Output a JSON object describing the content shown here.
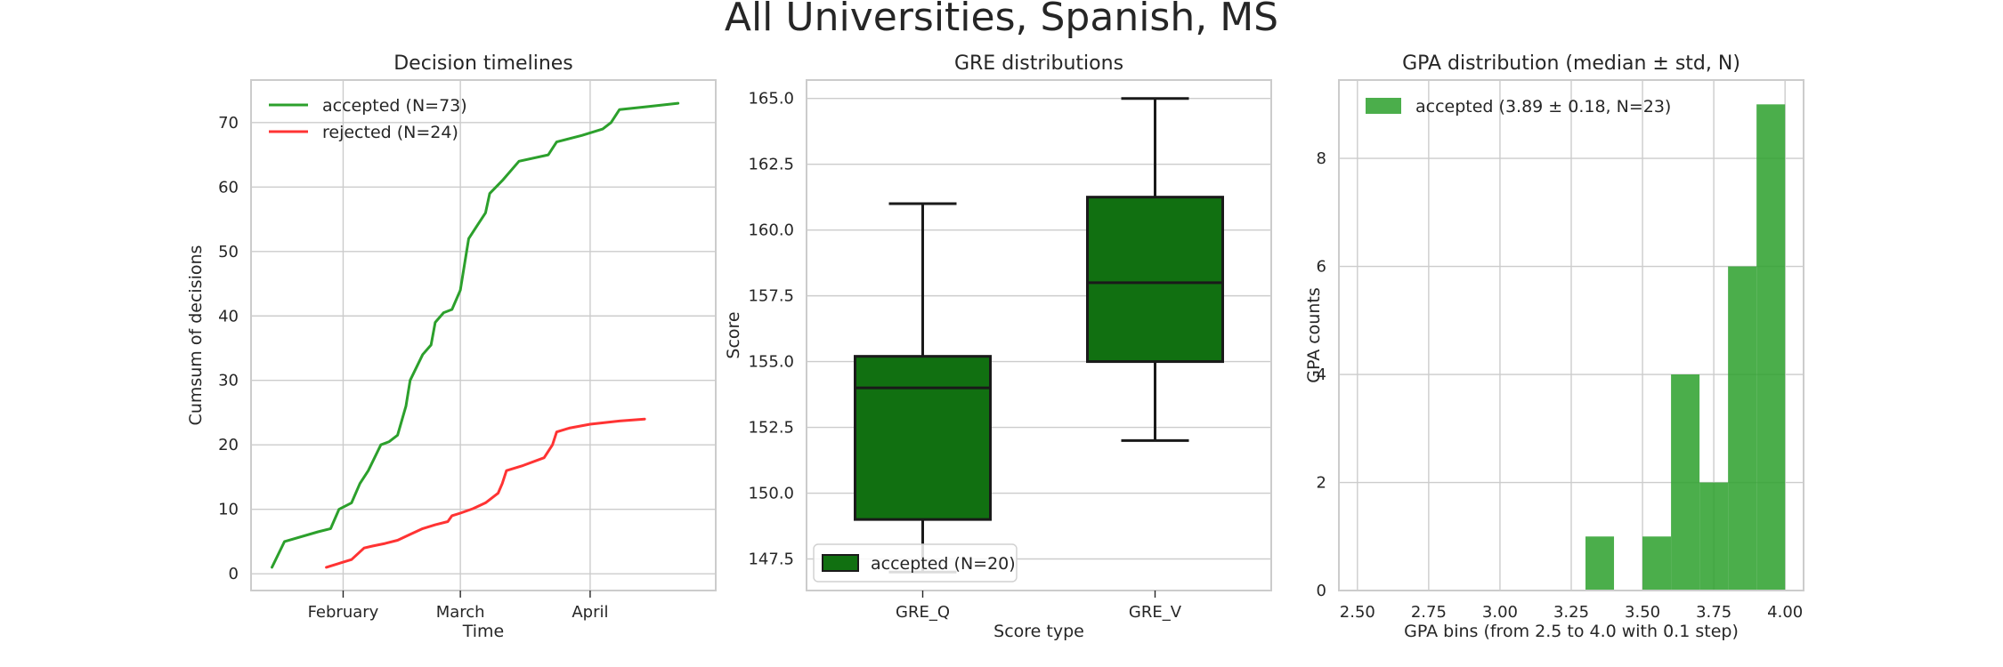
{
  "suptitle": "All Universities, Spanish, MS",
  "chart_data": [
    {
      "type": "line",
      "title": "Decision timelines",
      "xlabel": "Time",
      "ylabel": "Cumsum of decisions",
      "xlim": [
        "2019-01-10",
        "2019-05-01"
      ],
      "ylim": [
        -2.6,
        76.6
      ],
      "yticks": [
        0,
        10,
        20,
        30,
        40,
        50,
        60,
        70
      ],
      "xticks": [
        {
          "date": "2019-02-01",
          "label": "February"
        },
        {
          "date": "2019-03-01",
          "label": "March"
        },
        {
          "date": "2019-04-01",
          "label": "April"
        }
      ],
      "grid": true,
      "legend": "top-left",
      "series": [
        {
          "name": "accepted (N=73)",
          "color": "#2ca02c",
          "points": [
            [
              "2019-01-15",
              1
            ],
            [
              "2019-01-18",
              5
            ],
            [
              "2019-01-26",
              6.5
            ],
            [
              "2019-01-29",
              7
            ],
            [
              "2019-01-31",
              10
            ],
            [
              "2019-02-03",
              11
            ],
            [
              "2019-02-05",
              14
            ],
            [
              "2019-02-07",
              16
            ],
            [
              "2019-02-10",
              20
            ],
            [
              "2019-02-12",
              20.5
            ],
            [
              "2019-02-14",
              21.5
            ],
            [
              "2019-02-16",
              26
            ],
            [
              "2019-02-17",
              30
            ],
            [
              "2019-02-20",
              34
            ],
            [
              "2019-02-22",
              35.5
            ],
            [
              "2019-02-23",
              39
            ],
            [
              "2019-02-25",
              40.5
            ],
            [
              "2019-02-27",
              41
            ],
            [
              "2019-03-01",
              44
            ],
            [
              "2019-03-02",
              48
            ],
            [
              "2019-03-03",
              52
            ],
            [
              "2019-03-05",
              54
            ],
            [
              "2019-03-07",
              56
            ],
            [
              "2019-03-08",
              59
            ],
            [
              "2019-03-11",
              61
            ],
            [
              "2019-03-15",
              64
            ],
            [
              "2019-03-22",
              65
            ],
            [
              "2019-03-24",
              67
            ],
            [
              "2019-03-30",
              68
            ],
            [
              "2019-04-04",
              69
            ],
            [
              "2019-04-06",
              70
            ],
            [
              "2019-04-08",
              72
            ],
            [
              "2019-04-15",
              72.5
            ],
            [
              "2019-04-22",
              73
            ]
          ]
        },
        {
          "name": "rejected (N=24)",
          "color": "#ff3333",
          "points": [
            [
              "2019-01-28",
              1
            ],
            [
              "2019-02-01",
              1.8
            ],
            [
              "2019-02-03",
              2.2
            ],
            [
              "2019-02-06",
              4
            ],
            [
              "2019-02-08",
              4.3
            ],
            [
              "2019-02-11",
              4.7
            ],
            [
              "2019-02-14",
              5.2
            ],
            [
              "2019-02-17",
              6.1
            ],
            [
              "2019-02-20",
              7.0
            ],
            [
              "2019-02-23",
              7.6
            ],
            [
              "2019-02-26",
              8.1
            ],
            [
              "2019-02-27",
              9
            ],
            [
              "2019-03-01",
              9.4
            ],
            [
              "2019-03-04",
              10.1
            ],
            [
              "2019-03-07",
              11.0
            ],
            [
              "2019-03-10",
              12.5
            ],
            [
              "2019-03-11",
              14
            ],
            [
              "2019-03-12",
              16
            ],
            [
              "2019-03-16",
              16.8
            ],
            [
              "2019-03-21",
              18
            ],
            [
              "2019-03-23",
              20
            ],
            [
              "2019-03-24",
              22
            ],
            [
              "2019-03-27",
              22.6
            ],
            [
              "2019-04-01",
              23.2
            ],
            [
              "2019-04-08",
              23.7
            ],
            [
              "2019-04-14",
              24
            ]
          ]
        }
      ]
    },
    {
      "type": "box",
      "title": "GRE distributions",
      "xlabel": "Score type",
      "ylabel": "Score",
      "ylim": [
        146.3,
        165.7
      ],
      "yticks": [
        147.5,
        150.0,
        152.5,
        155.0,
        157.5,
        160.0,
        162.5,
        165.0
      ],
      "categories": [
        "GRE_Q",
        "GRE_V"
      ],
      "grid": true,
      "legend": "bottom-left",
      "series": [
        {
          "name": "accepted (N=20)",
          "color": "#117011",
          "boxes": [
            {
              "category": "GRE_Q",
              "whisker_low": 147.0,
              "q1": 149.0,
              "median": 154.0,
              "q3": 155.2,
              "whisker_high": 161.0
            },
            {
              "category": "GRE_V",
              "whisker_low": 152.0,
              "q1": 155.0,
              "median": 158.0,
              "q3": 161.25,
              "whisker_high": 165.0
            }
          ]
        }
      ]
    },
    {
      "type": "bar",
      "title": "GPA distribution (median ± std, N)",
      "xlabel": "GPA bins (from 2.5 to 4.0 with 0.1 step)",
      "ylabel": "GPA counts",
      "xlim": [
        2.435,
        4.065
      ],
      "ylim": [
        0,
        9.45
      ],
      "xticks": [
        2.5,
        2.75,
        3.0,
        3.25,
        3.5,
        3.75,
        4.0
      ],
      "xtick_labels": [
        "2.50",
        "2.75",
        "3.00",
        "3.25",
        "3.50",
        "3.75",
        "4.00"
      ],
      "yticks": [
        0,
        2,
        4,
        6,
        8
      ],
      "grid": true,
      "legend": "top-left",
      "series": [
        {
          "name": "accepted (3.89 ± 0.18, N=23)",
          "color": "#2ca02c",
          "bins": [
            {
              "from": 3.3,
              "to": 3.4,
              "count": 1
            },
            {
              "from": 3.5,
              "to": 3.6,
              "count": 1
            },
            {
              "from": 3.6,
              "to": 3.7,
              "count": 4
            },
            {
              "from": 3.7,
              "to": 3.8,
              "count": 2
            },
            {
              "from": 3.8,
              "to": 3.9,
              "count": 6
            },
            {
              "from": 3.9,
              "to": 4.0,
              "count": 9
            }
          ]
        }
      ]
    }
  ]
}
